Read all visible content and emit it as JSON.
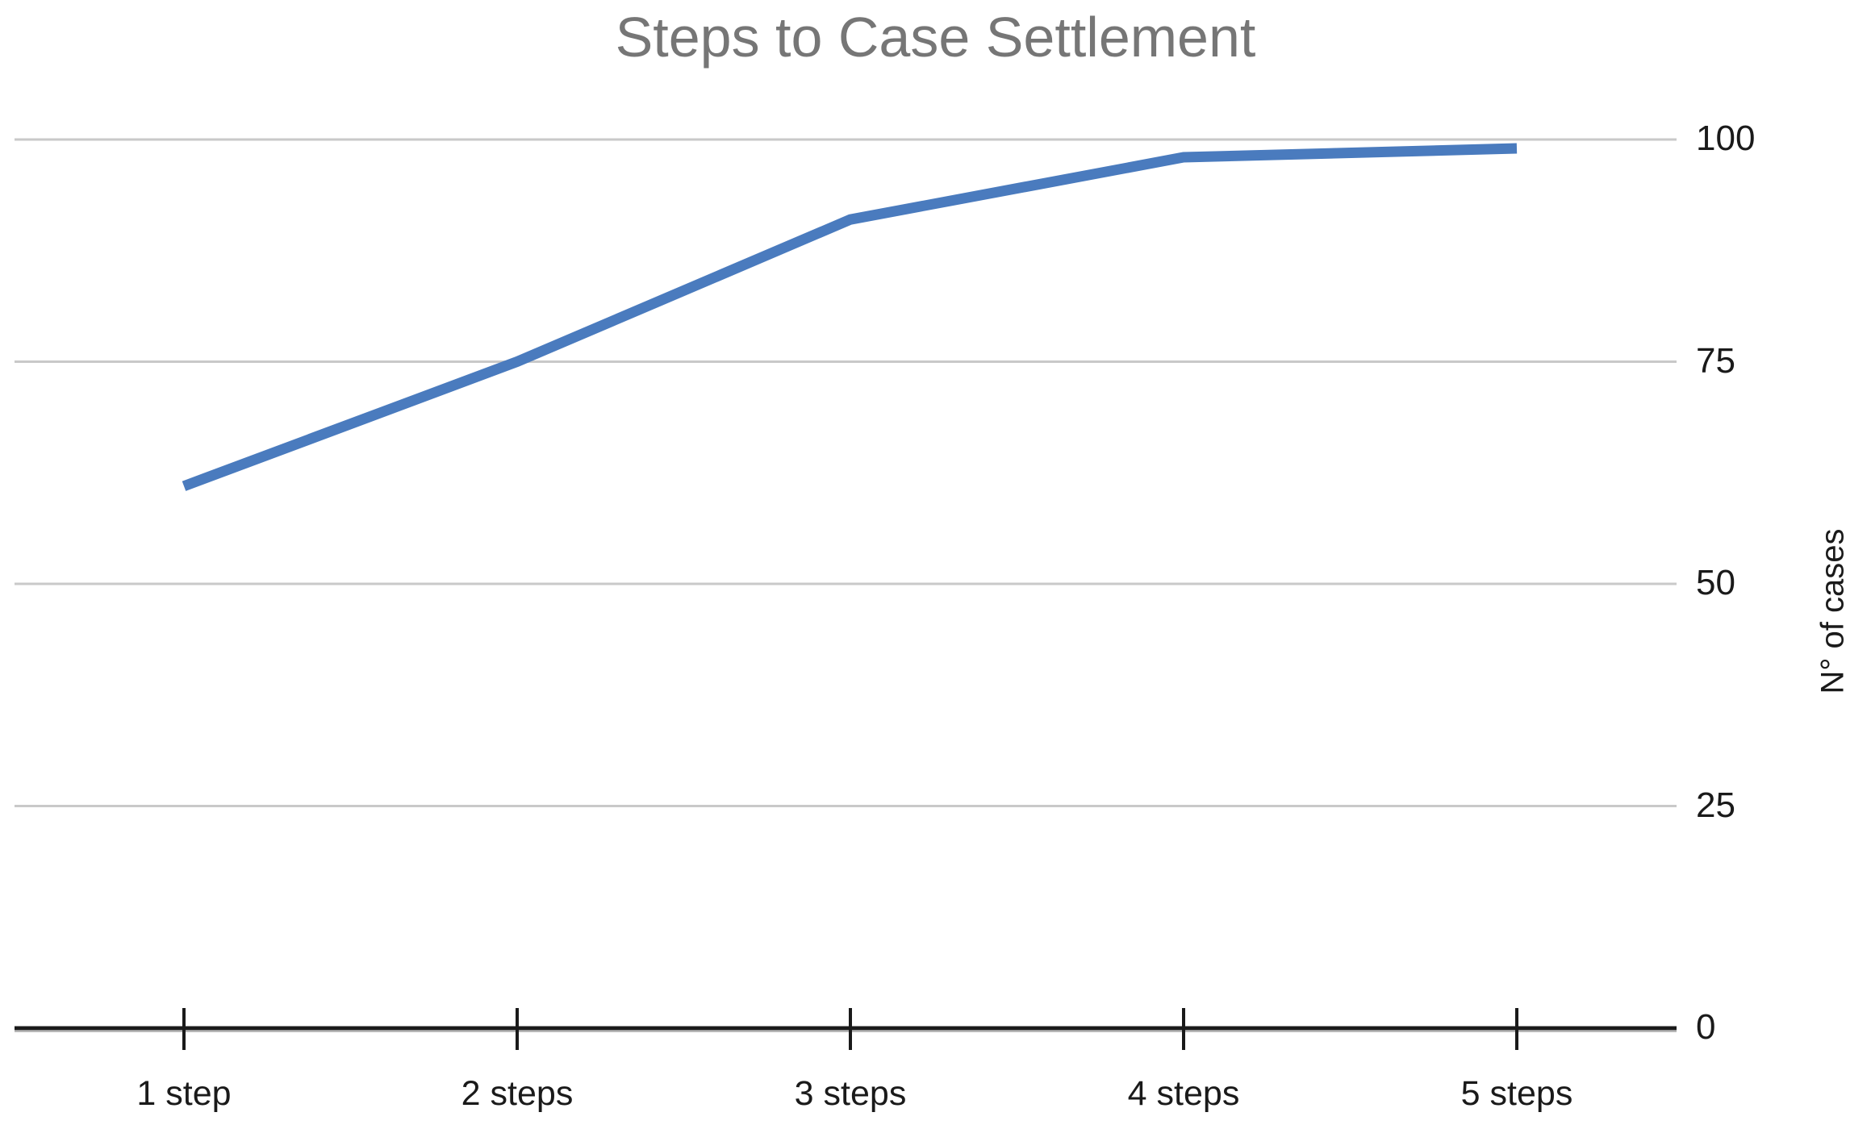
{
  "chart_data": {
    "type": "line",
    "title": "Steps to Case Settlement",
    "categories": [
      "1 step",
      "2 steps",
      "3 steps",
      "4 steps",
      "5 steps"
    ],
    "series": [
      {
        "name": "N° of cases",
        "values": [
          61,
          75,
          91,
          98,
          99
        ]
      }
    ],
    "xlabel": "",
    "ylabel": "N° of cases",
    "ylim": [
      0,
      100
    ],
    "yticks": [
      0,
      25,
      50,
      75,
      100
    ],
    "yaxis_side": "right",
    "grid": true,
    "legend": false,
    "colors": {
      "line": "#4A7BBE",
      "title": "#767676",
      "grid": "#c9c9c9",
      "axis": "#1a1a1a",
      "axis_shadow": "#b7b7b7",
      "labels": "#1a1a1a",
      "background": "#ffffff"
    }
  }
}
